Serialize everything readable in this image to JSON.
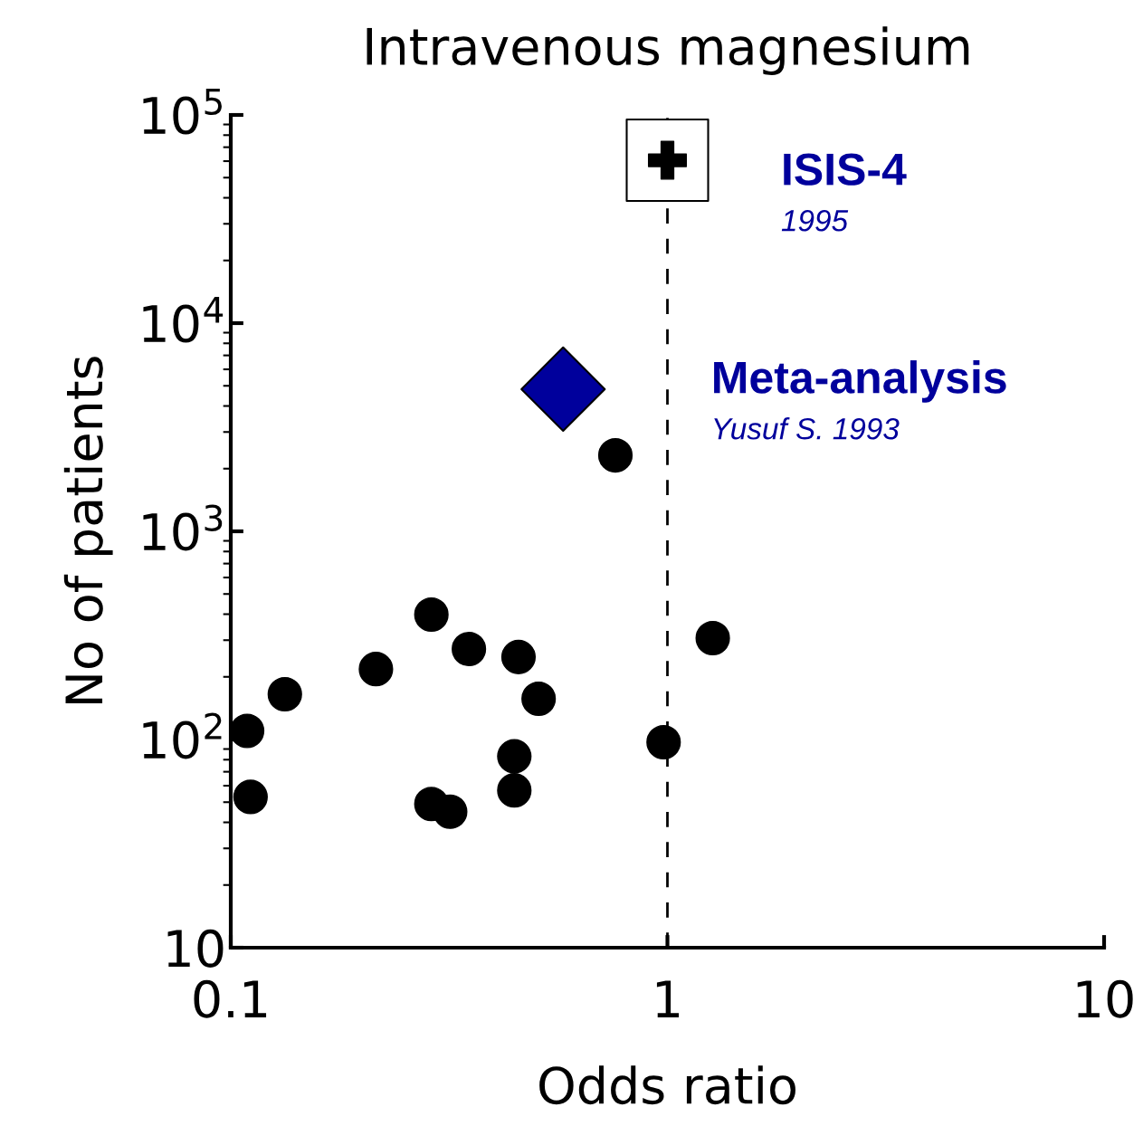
{
  "chart_data": {
    "type": "scatter",
    "title": "Intravenous magnesium",
    "xlabel": "Odds ratio",
    "ylabel": "No of patients",
    "log": "xy",
    "xlim": [
      0.1,
      10
    ],
    "xticks": [
      0.1,
      1,
      10
    ],
    "ylim": [
      10,
      100000
    ],
    "yticks": [
      10,
      {
        "value": 100,
        "label": "10$^{2}$"
      },
      {
        "value": 1000,
        "label": "10$^{3}$"
      },
      {
        "value": 10000,
        "label": "10$^{4}$"
      },
      {
        "value": 100000,
        "label": "10$^{5}$"
      }
    ],
    "series": [
      {
        "color": "#000000",
        "marker": "circle",
        "x": [
          0.109,
          0.111,
          0.133,
          0.215,
          0.288,
          0.288,
          0.318,
          0.351,
          0.456,
          0.446,
          0.446,
          0.507,
          0.76,
          0.98,
          1.27
        ],
        "values": [
          110,
          53,
          165,
          218,
          398,
          49,
          45,
          272,
          249,
          83,
          57,
          157,
          2317,
          97,
          307
        ]
      },
      {
        "color": "#00009c",
        "marker": "diamond",
        "x": [
          0.577
        ],
        "values": [
          4820
        ]
      },
      {
        "color": "#000000",
        "marker": "cross",
        "x": [
          1.0
        ],
        "values": [
          60600
        ]
      }
    ],
    "ref_lines": [
      {
        "axis": "x",
        "value": 1,
        "line_style": "dashed",
        "color": "#000000"
      }
    ],
    "annotations": [
      "ISIS-4",
      "1995",
      "Meta-analysis",
      "Yusuf S. 1993"
    ],
    "grid": false,
    "legend": false
  }
}
